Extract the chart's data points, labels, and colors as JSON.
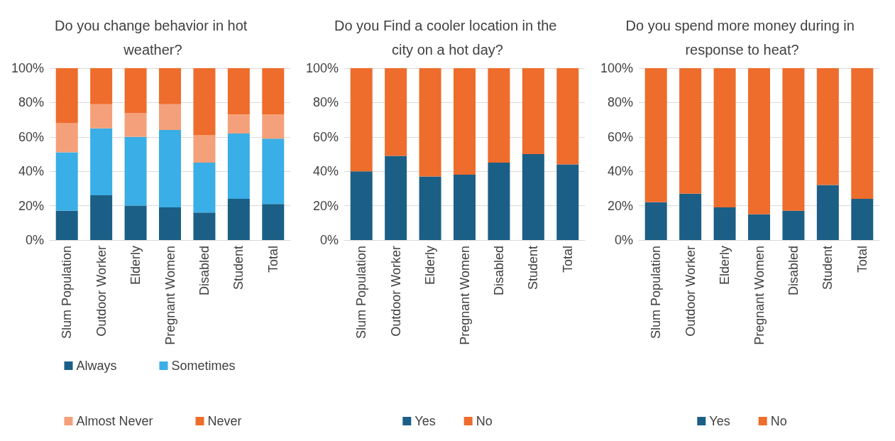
{
  "chart_data": [
    {
      "type": "bar",
      "title": "Do you change behavior in hot weather?",
      "categories": [
        "Slum Population",
        "Outdoor Worker",
        "Elderly",
        "Pregnant Women",
        "Disabled",
        "Student",
        "Total"
      ],
      "stacked": true,
      "ylim": [
        0,
        100
      ],
      "yticks": [
        {
          "value": 0,
          "label": "0%"
        },
        {
          "value": 20,
          "label": "20%"
        },
        {
          "value": 40,
          "label": "40%"
        },
        {
          "value": 60,
          "label": "60%"
        },
        {
          "value": 80,
          "label": "80%"
        },
        {
          "value": 100,
          "label": "100%"
        }
      ],
      "grid": "y",
      "legend": "bottom",
      "series": [
        {
          "name": "Always",
          "color": "#1b5f86",
          "values": [
            17,
            26,
            20,
            19,
            16,
            24,
            21
          ]
        },
        {
          "name": "Sometimes",
          "color": "#3aaee6",
          "values": [
            34,
            39,
            40,
            45,
            29,
            38,
            38
          ]
        },
        {
          "name": "Almost Never",
          "color": "#f4a07a",
          "values": [
            17,
            14,
            14,
            15,
            16,
            11,
            14
          ]
        },
        {
          "name": "Never",
          "color": "#ee6c2c",
          "values": [
            32,
            21,
            26,
            21,
            39,
            27,
            27
          ]
        }
      ]
    },
    {
      "type": "bar",
      "title": "Do you Find a cooler location in the city on a hot day?",
      "categories": [
        "Slum Population",
        "Outdoor Worker",
        "Elderly",
        "Pregnant Women",
        "Disabled",
        "Student",
        "Total"
      ],
      "stacked": true,
      "ylim": [
        0,
        100
      ],
      "yticks": [
        {
          "value": 0,
          "label": "0%"
        },
        {
          "value": 20,
          "label": "20%"
        },
        {
          "value": 40,
          "label": "40%"
        },
        {
          "value": 60,
          "label": "60%"
        },
        {
          "value": 80,
          "label": "80%"
        },
        {
          "value": 100,
          "label": "100%"
        }
      ],
      "grid": "y",
      "legend": "bottom",
      "series": [
        {
          "name": "Yes",
          "color": "#1b5f86",
          "values": [
            40,
            49,
            37,
            38,
            45,
            50,
            44
          ]
        },
        {
          "name": "No",
          "color": "#ee6c2c",
          "values": [
            60,
            51,
            63,
            62,
            55,
            50,
            56
          ]
        }
      ]
    },
    {
      "type": "bar",
      "title": "Do you spend more money during in response to heat?",
      "categories": [
        "Slum Population",
        "Outdoor Worker",
        "Elderly",
        "Pregnant Women",
        "Disabled",
        "Student",
        "Total"
      ],
      "stacked": true,
      "ylim": [
        0,
        100
      ],
      "yticks": [
        {
          "value": 0,
          "label": "0%"
        },
        {
          "value": 20,
          "label": "20%"
        },
        {
          "value": 40,
          "label": "40%"
        },
        {
          "value": 60,
          "label": "60%"
        },
        {
          "value": 80,
          "label": "80%"
        },
        {
          "value": 100,
          "label": "100%"
        }
      ],
      "grid": "y",
      "legend": "bottom",
      "series": [
        {
          "name": "Yes",
          "color": "#1b5f86",
          "values": [
            22,
            27,
            19,
            15,
            17,
            32,
            24
          ]
        },
        {
          "name": "No",
          "color": "#ee6c2c",
          "values": [
            78,
            73,
            81,
            85,
            83,
            68,
            76
          ]
        }
      ]
    }
  ]
}
